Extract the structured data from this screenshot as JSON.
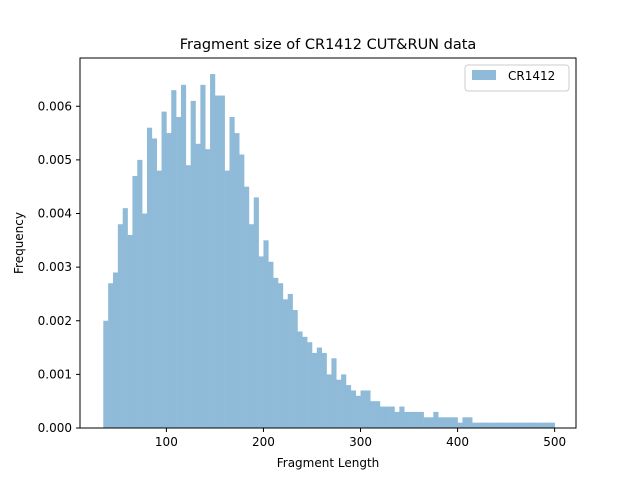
{
  "chart_data": {
    "type": "bar",
    "title": "Fragment size of CR1412 CUT&RUN data",
    "xlabel": "Fragment Length",
    "ylabel": "Frequency",
    "xlim": [
      11,
      522
    ],
    "ylim": [
      0,
      0.0069
    ],
    "x_ticks": [
      100,
      200,
      300,
      400,
      500
    ],
    "x_tick_labels": [
      "100",
      "200",
      "300",
      "400",
      "500"
    ],
    "y_ticks": [
      0,
      0.001,
      0.002,
      0.003,
      0.004,
      0.005,
      0.006
    ],
    "y_tick_labels": [
      "0.000",
      "0.001",
      "0.002",
      "0.003",
      "0.004",
      "0.005",
      "0.006"
    ],
    "grid": false,
    "legend_position": "top-right",
    "series": [
      {
        "name": "CR1412",
        "color": "#8fbbd9",
        "bin_start": 35,
        "bin_width": 5,
        "values": [
          0.002,
          0.0027,
          0.0029,
          0.0038,
          0.0041,
          0.0036,
          0.0047,
          0.005,
          0.004,
          0.0056,
          0.0054,
          0.0048,
          0.0059,
          0.0055,
          0.0063,
          0.0058,
          0.0064,
          0.0049,
          0.0061,
          0.0053,
          0.0064,
          0.0052,
          0.0066,
          0.0062,
          0.0062,
          0.0048,
          0.0058,
          0.0055,
          0.0051,
          0.0045,
          0.0038,
          0.0043,
          0.0032,
          0.0035,
          0.0031,
          0.0028,
          0.0027,
          0.0024,
          0.0025,
          0.0022,
          0.0018,
          0.0017,
          0.0016,
          0.0014,
          0.0015,
          0.0014,
          0.001,
          0.0013,
          0.0009,
          0.001,
          0.0008,
          0.0007,
          0.0006,
          0.0007,
          0.0007,
          0.0005,
          0.0005,
          0.0004,
          0.0004,
          0.0004,
          0.0003,
          0.0004,
          0.0003,
          0.0003,
          0.0003,
          0.0003,
          0.0002,
          0.0002,
          0.0003,
          0.0002,
          0.0002,
          0.0002,
          0.0002,
          0.0001,
          0.0002,
          0.0002,
          0.0001,
          0.0001,
          0.0001,
          0.0001,
          0.0001,
          0.0001,
          0.0001,
          0.0001,
          0.0001,
          0.0001,
          0.0001,
          0.0001,
          0.0001,
          0.0001,
          0.0001,
          0.0001,
          0.0001
        ]
      }
    ]
  }
}
